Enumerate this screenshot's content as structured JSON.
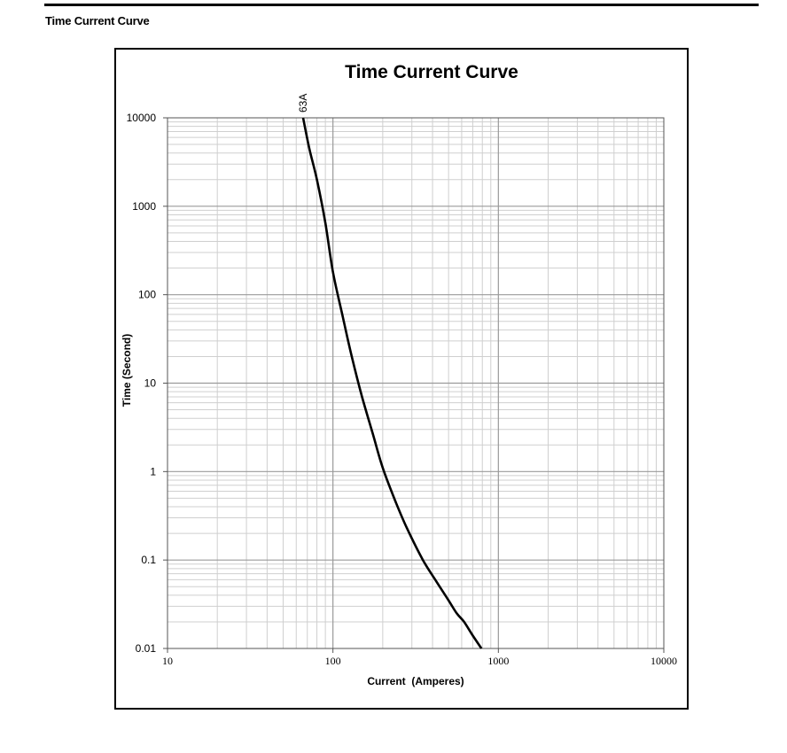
{
  "page": {
    "section_heading": "Time Current Curve"
  },
  "chart_data": {
    "type": "line",
    "title": "Time Current Curve",
    "xlabel": "Current  (Amperes)",
    "ylabel": "Time (Second)",
    "x_scale": "log",
    "y_scale": "log",
    "xlim": [
      10,
      10000
    ],
    "ylim": [
      0.01,
      10000
    ],
    "x_ticks": [
      "10",
      "100",
      "1000",
      "10000"
    ],
    "y_ticks": [
      "10000",
      "1000",
      "100",
      "10",
      "1",
      "0.1",
      "0.01"
    ],
    "grid": true,
    "series": [
      {
        "name": "63A",
        "color": "#000000",
        "x": [
          66,
          72,
          80,
          90,
          100,
          115,
          130,
          150,
          175,
          200,
          240,
          280,
          350,
          420,
          500,
          560,
          620,
          700,
          790
        ],
        "y": [
          10000,
          4500,
          2000,
          650,
          180,
          55,
          20,
          7,
          2.6,
          1.1,
          0.45,
          0.23,
          0.1,
          0.058,
          0.035,
          0.025,
          0.02,
          0.014,
          0.01
        ]
      }
    ]
  }
}
